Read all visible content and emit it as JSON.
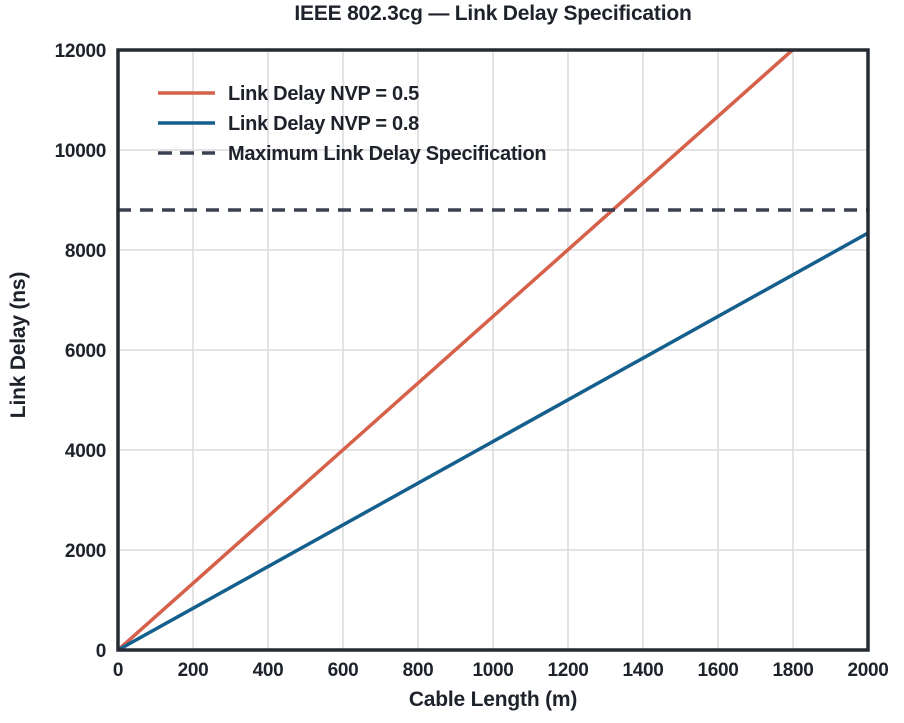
{
  "chart_data": {
    "type": "line",
    "title": "IEEE 802.3cg — Link Delay Specification",
    "xlabel": "Cable Length (m)",
    "ylabel": "Link Delay (ns)",
    "xlim": [
      0,
      2000
    ],
    "ylim": [
      0,
      12000
    ],
    "x_ticks": [
      0,
      200,
      400,
      600,
      800,
      1000,
      1200,
      1400,
      1600,
      1800,
      2000
    ],
    "y_ticks": [
      0,
      2000,
      4000,
      6000,
      8000,
      10000,
      12000
    ],
    "grid": true,
    "legend_position": "upper-left",
    "legend_frame": false,
    "series": [
      {
        "name": "Link Delay NVP = 0.5",
        "style": "solid",
        "color": "#d6604a",
        "slope_ns_per_m": 6.67,
        "x": [
          0,
          2000
        ],
        "y": [
          0,
          13343
        ]
      },
      {
        "name": "Link Delay NVP = 0.8",
        "style": "solid",
        "color": "#155f8d",
        "slope_ns_per_m": 4.17,
        "x": [
          0,
          2000
        ],
        "y": [
          0,
          8339
        ]
      },
      {
        "name": "Maximum Link Delay Specification",
        "style": "dashed",
        "color": "#3a4150",
        "max_delay_ns": 8800,
        "x": [
          0,
          2000
        ],
        "y": [
          8800,
          8800
        ]
      }
    ],
    "colors": {
      "background": "#ffffff",
      "text": "#1e222b",
      "frame": "#262b33",
      "grid": "#dcdcde"
    }
  }
}
